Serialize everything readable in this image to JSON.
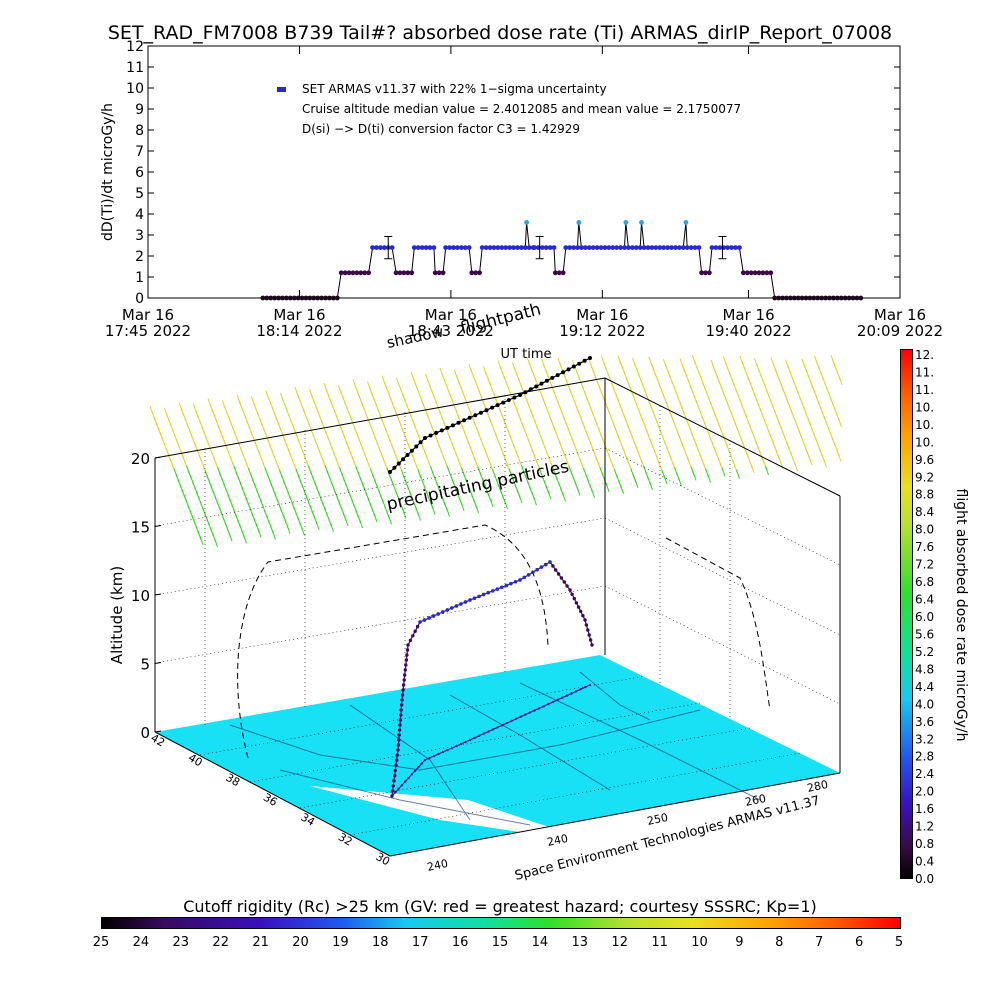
{
  "title": "SET_RAD_FM7008  B739 Tail#? absorbed dose rate (Ti) ARMAS_dirIP_Report_07008",
  "chart_data": [
    {
      "type": "scatter",
      "title": "SET_RAD_FM7008  B739 Tail#? absorbed dose rate (Ti) ARMAS_dirIP_Report_07008",
      "ylabel": "dD(Ti)/dt microGy/h",
      "xlabel": "UT time",
      "ylim": [
        0,
        12
      ],
      "yticks": [
        "0",
        "1",
        "2",
        "3",
        "4",
        "5",
        "6",
        "7",
        "8",
        "9",
        "10",
        "11",
        "12"
      ],
      "xlim": [
        "2022-03-16 17:45",
        "2022-03-16 20:09"
      ],
      "xticks": [
        {
          "l1": "Mar 16",
          "l2": "17:45 2022",
          "t": 0
        },
        {
          "l1": "Mar 16",
          "l2": "18:14 2022",
          "t": 29
        },
        {
          "l1": "Mar 16",
          "l2": "18:43 2022",
          "t": 58
        },
        {
          "l1": "Mar 16",
          "l2": "19:12 2022",
          "t": 87
        },
        {
          "l1": "Mar 16",
          "l2": "19:40 2022",
          "t": 115
        },
        {
          "l1": "Mar 16",
          "l2": "20:09 2022",
          "t": 144
        }
      ],
      "legend": {
        "line1": "SET ARMAS v11.37 with 22% 1−sigma uncertainty",
        "line2": "Cruise altitude median value = 2.4012085 and mean value = 2.1750077",
        "line3": "D(si) −> D(ti) conversion factor C3 = 1.42929"
      },
      "series": [
        {
          "name": "SET ARMAS v11.37 with 22% 1−sigma uncertainty",
          "segments": [
            {
              "t0": 22,
              "t1": 37,
              "v": 0.0
            },
            {
              "t0": 37,
              "t1": 43,
              "v": 1.2
            },
            {
              "t0": 43,
              "t1": 47.5,
              "v": 2.4
            },
            {
              "t0": 47.5,
              "t1": 51,
              "v": 1.2
            },
            {
              "t0": 51,
              "t1": 55,
              "v": 2.4
            },
            {
              "t0": 55,
              "t1": 57,
              "v": 1.2
            },
            {
              "t0": 57,
              "t1": 62,
              "v": 2.4
            },
            {
              "t0": 62,
              "t1": 64,
              "v": 1.2
            },
            {
              "t0": 64,
              "t1": 74,
              "v": 2.4
            },
            {
              "t0": 74,
              "t1": 78,
              "v": 2.4
            },
            {
              "t0": 78,
              "t1": 80,
              "v": 1.2
            },
            {
              "t0": 80,
              "t1": 89,
              "v": 2.4
            },
            {
              "t0": 89,
              "t1": 106,
              "v": 2.4
            },
            {
              "t0": 106,
              "t1": 108,
              "v": 1.2
            },
            {
              "t0": 108,
              "t1": 114,
              "v": 2.4
            },
            {
              "t0": 114,
              "t1": 120,
              "v": 1.2
            },
            {
              "t0": 120,
              "t1": 137,
              "v": 0.0
            }
          ],
          "peaks": [
            {
              "t": 72.5,
              "v": 3.6
            },
            {
              "t": 82.5,
              "v": 3.6
            },
            {
              "t": 91.5,
              "v": 3.6
            },
            {
              "t": 94.5,
              "v": 3.6
            },
            {
              "t": 103,
              "v": 3.6
            }
          ],
          "error_bars": [
            {
              "t": 46,
              "v": 2.4,
              "err": 0.53
            },
            {
              "t": 75,
              "v": 2.4,
              "err": 0.53
            },
            {
              "t": 110,
              "v": 2.4,
              "err": 0.53
            }
          ]
        }
      ]
    },
    {
      "type": "scatter",
      "title": "",
      "zlabel": "Altitude (km)",
      "zticks": [
        "0",
        "5",
        "10",
        "15",
        "20"
      ],
      "lat_ticks": [
        "42",
        "40",
        "38",
        "36",
        "34",
        "32",
        "30"
      ],
      "lon_ticks": [
        "240",
        "240",
        "250",
        "260",
        "280"
      ],
      "annotations": {
        "shadow": "shadow",
        "flightpath": "flightpath",
        "precip": "precipitating particles",
        "credit": "Space Environment Technologies ARMAS v11.37",
        "uttime": "UT time"
      }
    }
  ],
  "colorbar_right": {
    "label": "flight absorbed dose rate microGy/h",
    "ticks": [
      "12.",
      "11.",
      "11.",
      "10.",
      "10.",
      "10.",
      "9.6",
      "9.2",
      "8.8",
      "8.4",
      "8.0",
      "7.6",
      "7.2",
      "6.8",
      "6.4",
      "6.0",
      "5.6",
      "5.2",
      "4.8",
      "4.4",
      "4.0",
      "3.6",
      "3.2",
      "2.8",
      "2.4",
      "2.0",
      "1.6",
      "1.2",
      "0.8",
      "0.4",
      "0.0"
    ]
  },
  "colorbar_bottom": {
    "label": "Cutoff rigidity (Rc) >25 km (GV: red = greatest hazard; courtesy SSSRC; Kp=1)",
    "ticks": [
      "25",
      "24",
      "23",
      "22",
      "21",
      "20",
      "19",
      "18",
      "17",
      "16",
      "15",
      "14",
      "13",
      "12",
      "11",
      "10",
      "9",
      "8",
      "7",
      "6",
      "5"
    ]
  },
  "colors": {
    "series": "#2a2acc",
    "peak": "#2ea3e0",
    "low": "#3a0a48",
    "map_fill": "#19e1f5",
    "precip_high": "#d8d82a",
    "precip_low": "#3ccf2a"
  }
}
